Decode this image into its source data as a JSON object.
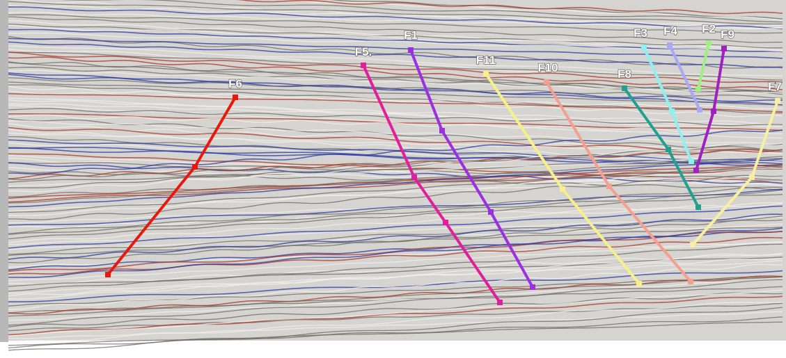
{
  "faults": [
    {
      "label": "F6"
    },
    {
      "label": "F5."
    },
    {
      "label": "F1"
    },
    {
      "label": "F11"
    },
    {
      "label": "F10"
    },
    {
      "label": "F8"
    },
    {
      "label": "F3"
    },
    {
      "label": "F4"
    },
    {
      "label": "F2"
    },
    {
      "label": "F9"
    },
    {
      "label": "F7"
    }
  ]
}
